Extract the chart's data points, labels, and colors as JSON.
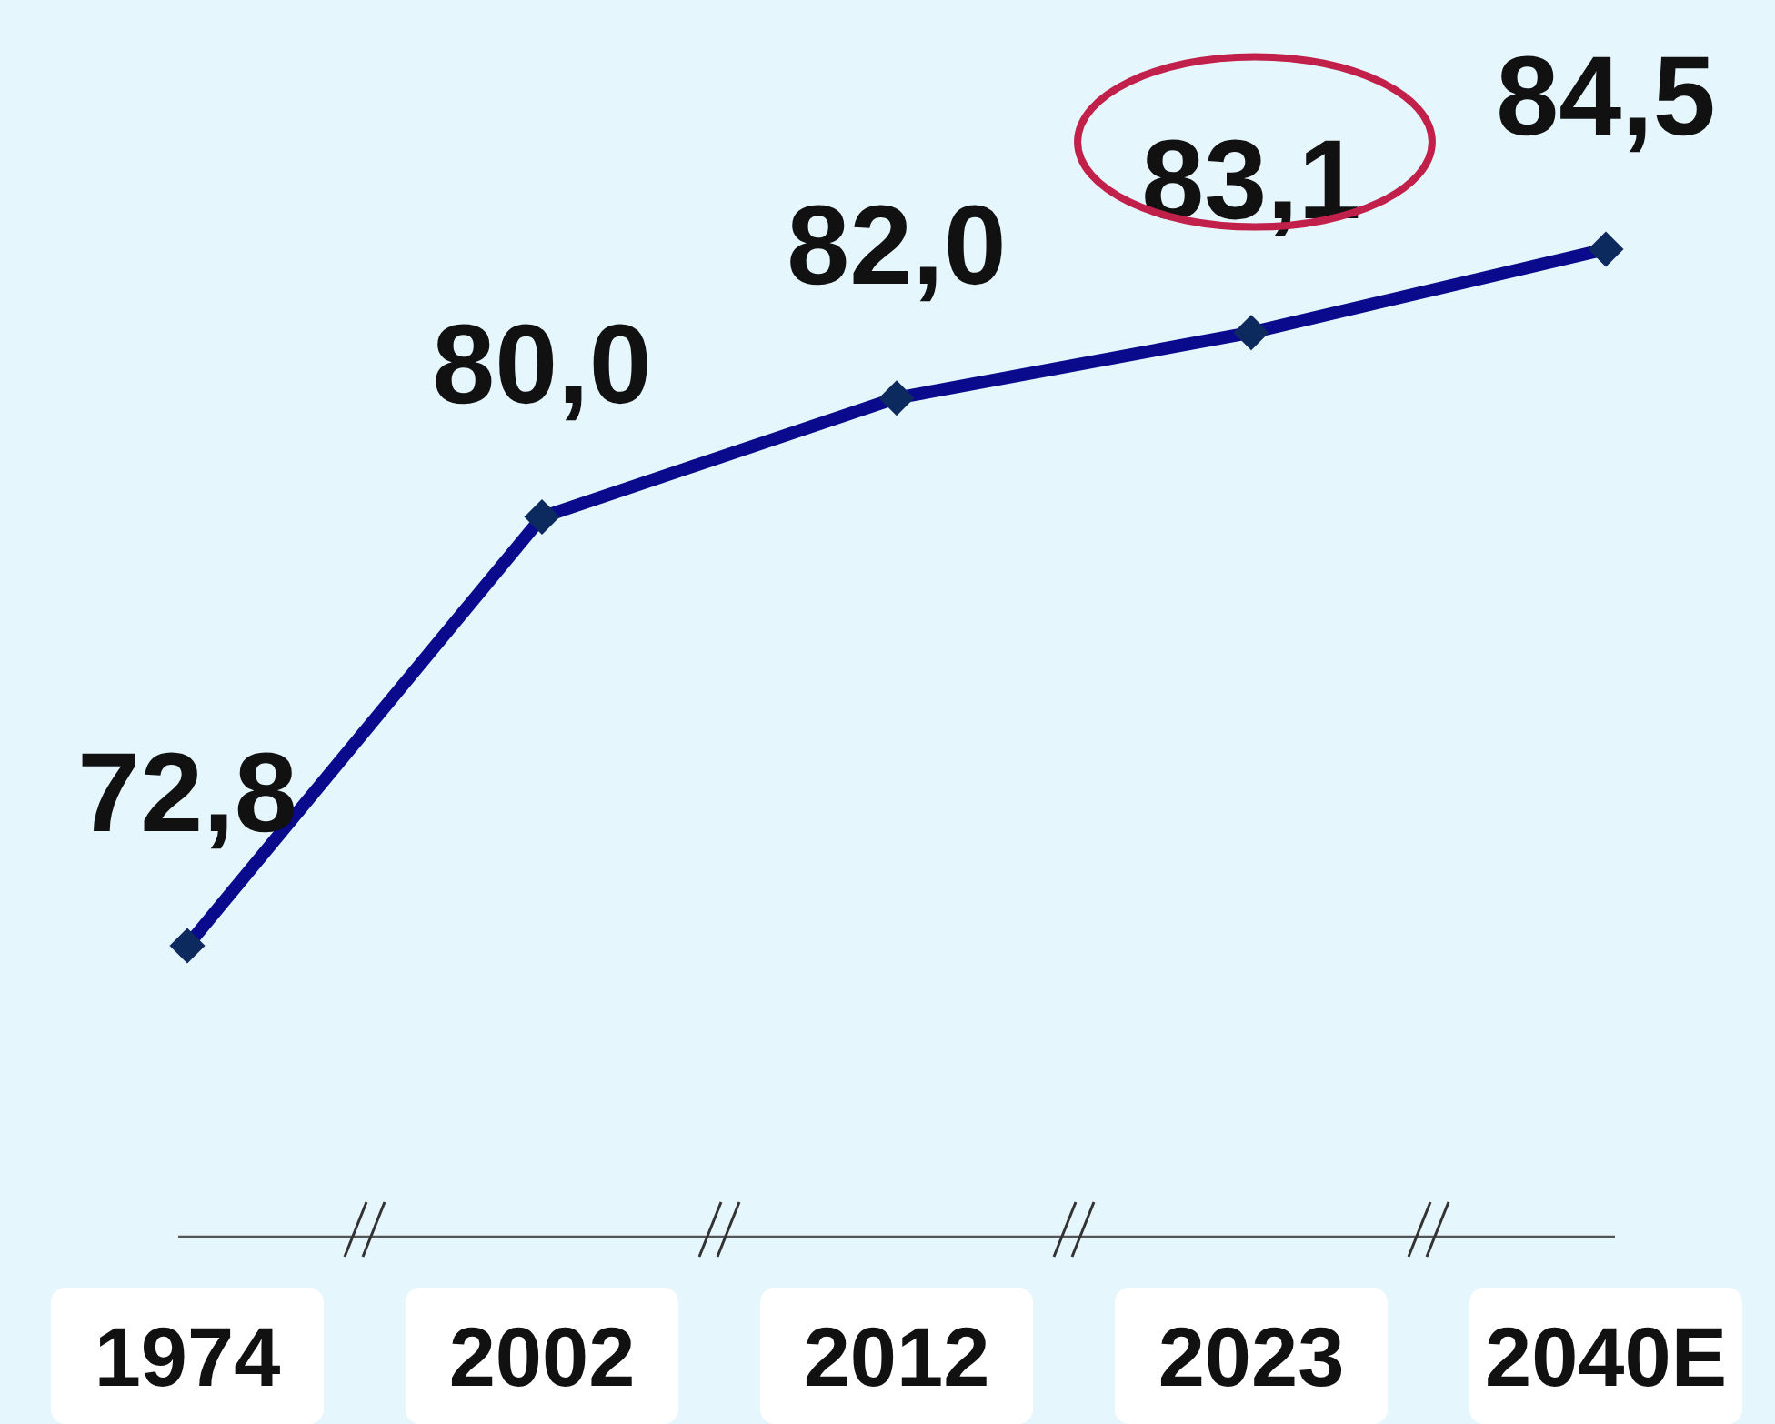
{
  "chart_data": {
    "type": "line",
    "categories": [
      "1974",
      "2002",
      "2012",
      "2023",
      "2040E"
    ],
    "series": [
      {
        "color": "#0a0a8c",
        "values": [
          72.8,
          80.0,
          82.0,
          83.1,
          84.5
        ],
        "value_labels": [
          "72,8",
          "80,0",
          "82,0",
          "83,1",
          "84,5"
        ]
      }
    ],
    "marker": "diamond",
    "line_style": "solid"
  }
}
